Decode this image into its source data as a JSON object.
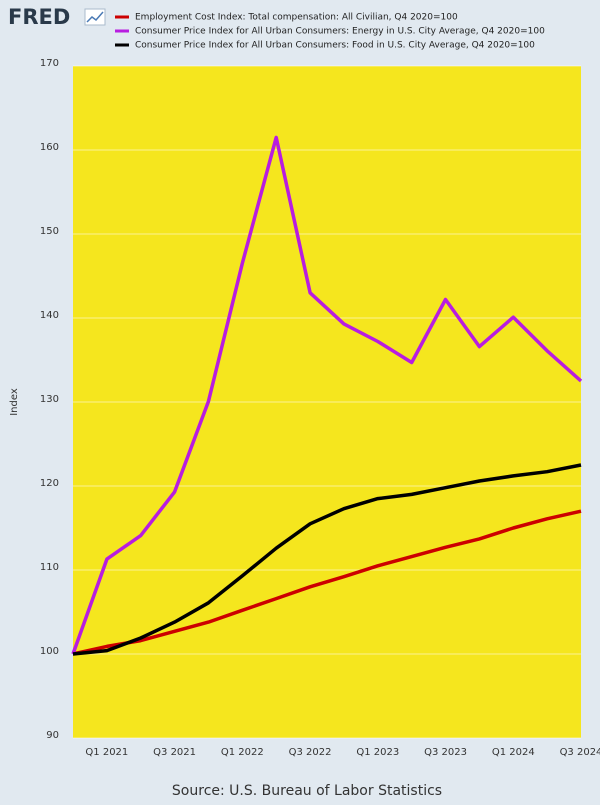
{
  "chart_data": {
    "type": "line",
    "logo": "FRED",
    "y_label": "Index",
    "source": "Source: U.S. Bureau of Labor Statistics",
    "categories": [
      null,
      "Q1 2021",
      null,
      "Q3 2021",
      null,
      "Q1 2022",
      null,
      "Q3 2022",
      null,
      "Q1 2023",
      null,
      "Q3 2023",
      null,
      "Q1 2024",
      null,
      "Q3 2024"
    ],
    "series": [
      {
        "name": "Employment Cost Index: Total compensation: All Civilian, Q4 2020=100",
        "color": "#cc0000",
        "values": [
          100,
          100.9,
          101.6,
          102.7,
          103.8,
          105.2,
          106.6,
          108.0,
          109.2,
          110.5,
          111.6,
          112.7,
          113.7,
          115.0,
          116.1,
          117.0
        ]
      },
      {
        "name": "Consumer Price Index for All Urban Consumers: Energy in U.S. City Average, Q4 2020=100",
        "color": "#b81de0",
        "values": [
          100,
          111.3,
          114.1,
          119.3,
          130.1,
          146.5,
          161.5,
          143.0,
          139.3,
          137.2,
          134.7,
          142.2,
          136.6,
          140.1,
          136.1,
          132.5
        ]
      },
      {
        "name": "Consumer Price Index for All Urban Consumers: Food in U.S. City Average, Q4 2020=100",
        "color": "#000000",
        "values": [
          100,
          100.4,
          101.9,
          103.8,
          106.1,
          109.3,
          112.6,
          115.5,
          117.3,
          118.5,
          119.0,
          119.8,
          120.6,
          121.2,
          121.7,
          122.5
        ]
      }
    ],
    "ylim": [
      90,
      170
    ],
    "yticks": [
      90,
      100,
      110,
      120,
      130,
      140,
      150,
      160,
      170
    ],
    "grid": true,
    "plot_background": "#f5e61e"
  }
}
